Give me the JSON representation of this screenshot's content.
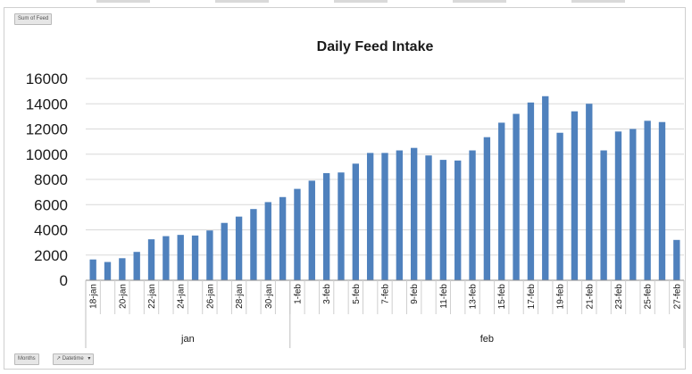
{
  "filter_button": {
    "label": "Sum of Feed"
  },
  "bottom_buttons": {
    "axis_field": "Months",
    "axis_field2": "Datetime"
  },
  "chart_data": {
    "type": "bar",
    "title": "Daily Feed Intake",
    "xlabel": "",
    "ylabel": "",
    "ylim": [
      0,
      16000
    ],
    "yticks": [
      0,
      2000,
      4000,
      6000,
      8000,
      10000,
      12000,
      14000,
      16000
    ],
    "grid": true,
    "legend": "none",
    "bar_color": "#4f81bd",
    "categories": [
      "18-jan",
      "19-jan",
      "20-jan",
      "21-jan",
      "22-jan",
      "23-jan",
      "24-jan",
      "25-jan",
      "26-jan",
      "27-jan",
      "28-jan",
      "29-jan",
      "30-jan",
      "31-jan",
      "1-feb",
      "2-feb",
      "3-feb",
      "4-feb",
      "5-feb",
      "6-feb",
      "7-feb",
      "8-feb",
      "9-feb",
      "10-feb",
      "11-feb",
      "12-feb",
      "13-feb",
      "14-feb",
      "15-feb",
      "16-feb",
      "17-feb",
      "18-feb",
      "19-feb",
      "20-feb",
      "21-feb",
      "22-feb",
      "23-feb",
      "24-feb",
      "25-feb",
      "26-feb",
      "27-feb"
    ],
    "tick_labels": [
      "18-jan",
      "",
      "20-jan",
      "",
      "22-jan",
      "",
      "24-jan",
      "",
      "26-jan",
      "",
      "28-jan",
      "",
      "30-jan",
      "",
      "1-feb",
      "",
      "3-feb",
      "",
      "5-feb",
      "",
      "7-feb",
      "",
      "9-feb",
      "",
      "11-feb",
      "",
      "13-feb",
      "",
      "15-feb",
      "",
      "17-feb",
      "",
      "19-feb",
      "",
      "21-feb",
      "",
      "23-feb",
      "",
      "25-feb",
      "",
      "27-feb"
    ],
    "groups": [
      {
        "label": "jan",
        "count": 14
      },
      {
        "label": "feb",
        "count": 27
      }
    ],
    "values": [
      1650,
      1450,
      1750,
      2250,
      3250,
      3500,
      3600,
      3550,
      3950,
      4550,
      5050,
      5650,
      6200,
      6600,
      7250,
      7900,
      8500,
      8550,
      9250,
      10100,
      10100,
      10300,
      10500,
      9900,
      9550,
      9500,
      10300,
      11350,
      12500,
      13200,
      14100,
      14600,
      11700,
      13400,
      14000,
      10300,
      11800,
      12000,
      12650,
      12550,
      3200
    ]
  }
}
